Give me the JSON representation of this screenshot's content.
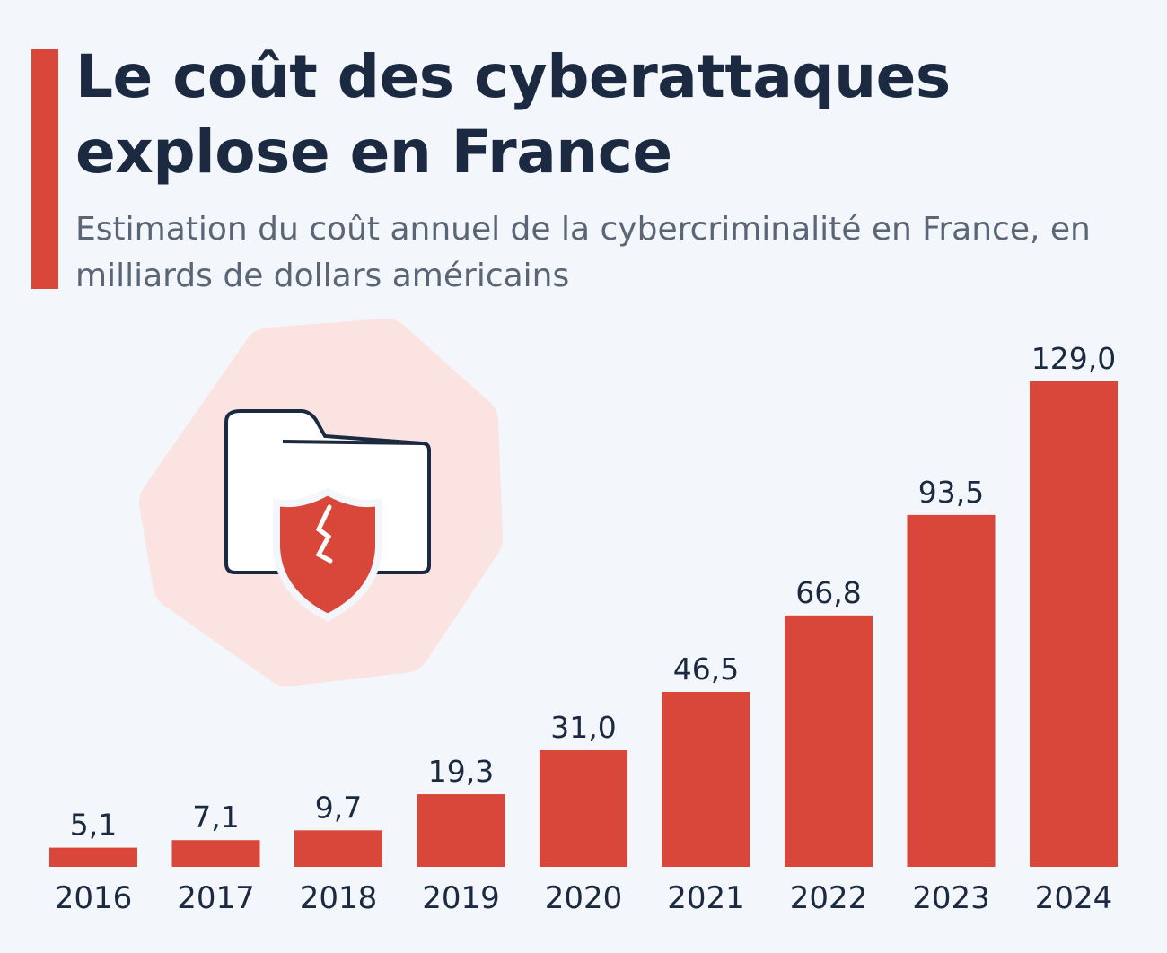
{
  "title": "Le coût des cyberattaques explose en France",
  "subtitle": "Estimation du coût annuel de la cybercriminalité en France, en milliards de dollars américains",
  "colors": {
    "bar": "#d9473a",
    "text": "#1b2a41",
    "background": "#f3f6fa",
    "icon_bg": "#fbe3e1"
  },
  "icon": "folder-with-broken-shield-icon",
  "chart_data": {
    "type": "bar",
    "title": "Le coût des cyberattaques explose en France",
    "subtitle": "Estimation du coût annuel de la cybercriminalité en France, en milliards de dollars américains",
    "categories": [
      "2016",
      "2017",
      "2018",
      "2019",
      "2020",
      "2021",
      "2022",
      "2023",
      "2024"
    ],
    "values": [
      5.1,
      7.1,
      9.7,
      19.3,
      31.0,
      46.5,
      66.8,
      93.5,
      129.0
    ],
    "value_labels": [
      "5,1",
      "7,1",
      "9,7",
      "19,3",
      "31,0",
      "46,5",
      "66,8",
      "93,5",
      "129,0"
    ],
    "xlabel": "",
    "ylabel": "",
    "ylim": [
      0,
      129
    ],
    "grid": false,
    "legend": "none"
  }
}
